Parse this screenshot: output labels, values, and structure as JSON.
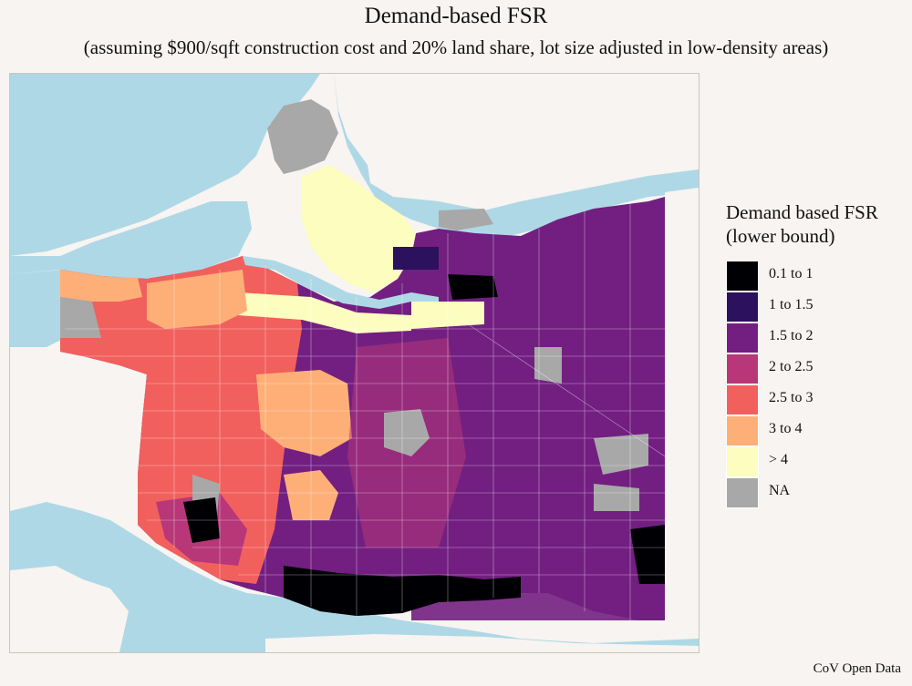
{
  "title": "Demand-based FSR",
  "subtitle": "(assuming $900/sqft construction cost and 20% land share, lot size adjusted in low-density areas)",
  "legend": {
    "title_line1": "Demand based FSR",
    "title_line2": "(lower bound)",
    "items": [
      {
        "label": "0.1 to 1",
        "color": "#000004"
      },
      {
        "label": "1 to 1.5",
        "color": "#2c115f"
      },
      {
        "label": "1.5 to 2",
        "color": "#721f81"
      },
      {
        "label": "2 to 2.5",
        "color": "#b73779"
      },
      {
        "label": "2.5 to 3",
        "color": "#f1605d"
      },
      {
        "label": "3 to 4",
        "color": "#feaf77"
      },
      {
        "label": "> 4",
        "color": "#fcfdbf"
      },
      {
        "label": "NA",
        "color": "#a8a8a8"
      }
    ]
  },
  "source": "CoV Open Data",
  "colors": {
    "water": "#aed8e6",
    "land": "#f7f4f1",
    "street": "#ffffff"
  }
}
